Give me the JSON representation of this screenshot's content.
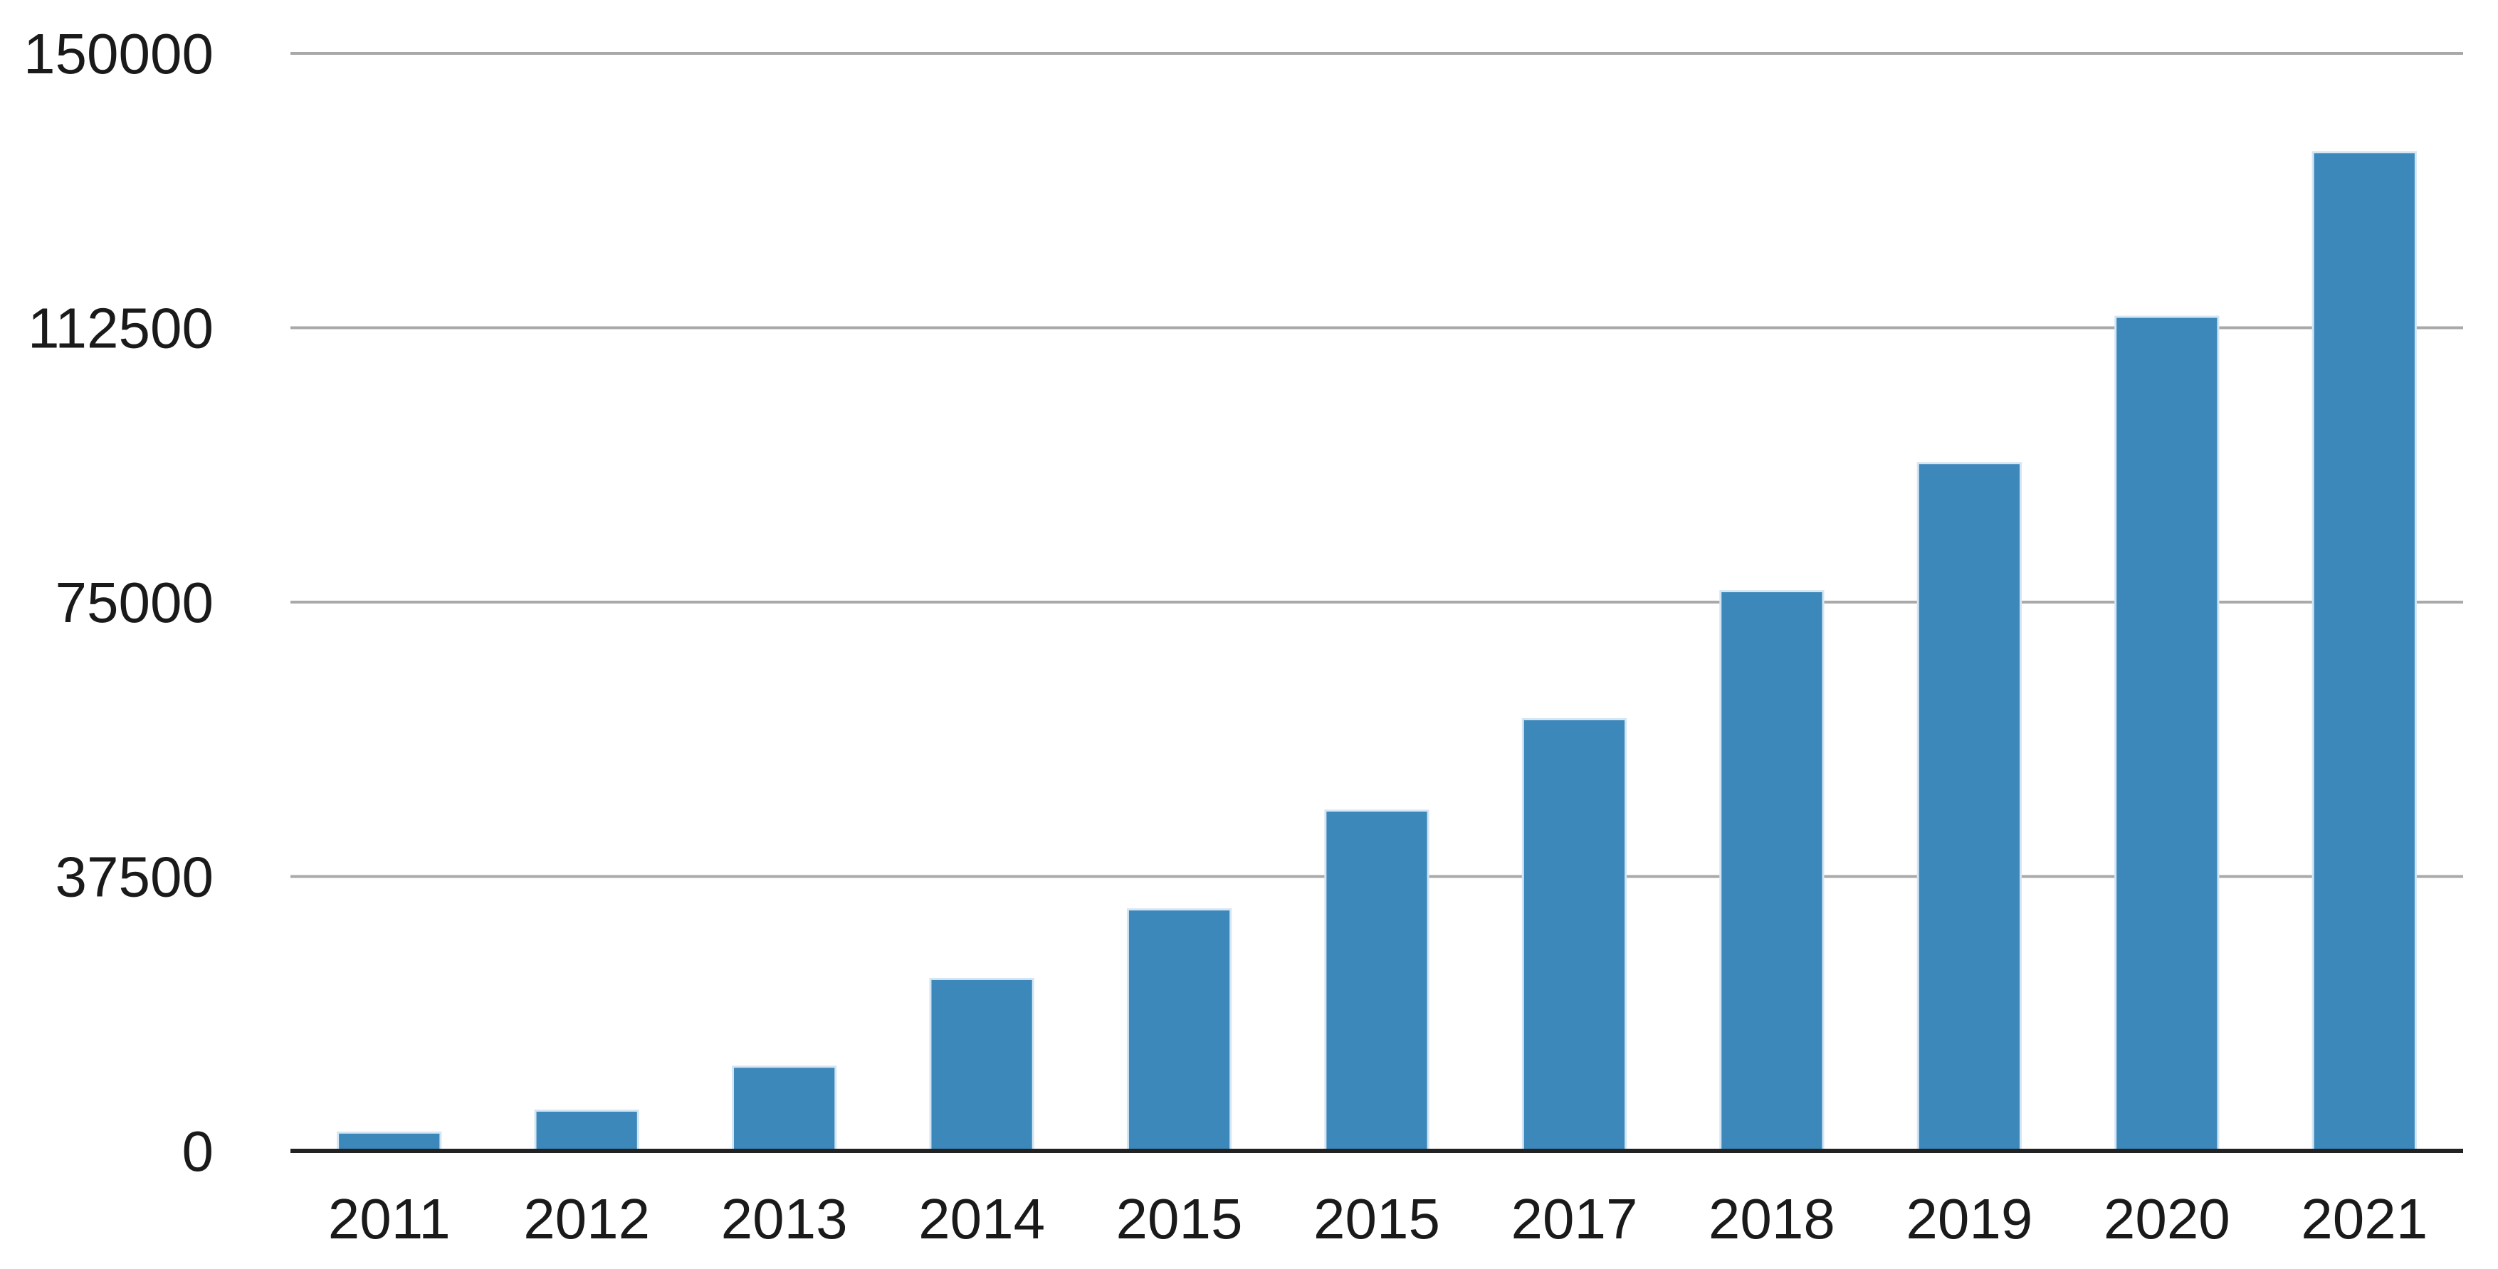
{
  "chart_data": {
    "type": "bar",
    "title": "",
    "xlabel": "",
    "ylabel": "",
    "categories": [
      "2011",
      "2012",
      "2013",
      "2014",
      "2015",
      "2015",
      "2017",
      "2018",
      "2019",
      "2020",
      "2021"
    ],
    "values": [
      2500,
      5500,
      11500,
      23500,
      33000,
      46500,
      59000,
      76500,
      94000,
      114000,
      136500
    ],
    "ylim": [
      0,
      150000
    ],
    "yticks": [
      0,
      37500,
      75000,
      112500,
      150000
    ],
    "ytick_labels": [
      "0",
      "37500",
      "75000",
      "112500",
      "150000"
    ],
    "grid": true,
    "legend": "none",
    "bar_color": "#3d88bb"
  }
}
